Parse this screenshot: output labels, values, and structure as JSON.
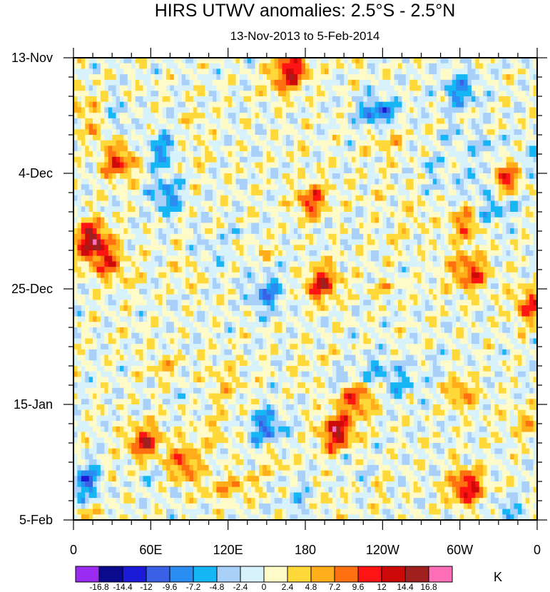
{
  "chart_data": {
    "type": "heatmap",
    "title": "HIRS UTWV anomalies: 2.5°S - 2.5°N",
    "subtitle": "13-Nov-2013 to 5-Feb-2014",
    "x_tick_labels": [
      "0",
      "60E",
      "120E",
      "180",
      "120W",
      "60W",
      "0"
    ],
    "x_range_deg_east": [
      0,
      360
    ],
    "y_tick_labels": [
      "13-Nov",
      "4-Dec",
      "25-Dec",
      "15-Jan",
      "5-Feb"
    ],
    "y_range_days": [
      0,
      84
    ],
    "colorbar_levels": [
      "-16.8",
      "-14.4",
      "-12",
      "-9.6",
      "-7.2",
      "-4.8",
      "-2.4",
      "0",
      "2.4",
      "4.8",
      "7.2",
      "9.6",
      "12",
      "14.4",
      "16.8"
    ],
    "colorbar_colors": [
      "#9a2bf0",
      "#0a0a8c",
      "#1a1ad8",
      "#3a60e6",
      "#2b8cf2",
      "#16b6f4",
      "#a8d0f8",
      "#d8f2fc",
      "#fffbc8",
      "#ffd83a",
      "#ffae1a",
      "#ff7010",
      "#ff1414",
      "#cc0a0a",
      "#a02020",
      "#ff6fb8"
    ],
    "units": "K",
    "features": [
      {
        "lon": 14,
        "day": 33,
        "value": 15
      },
      {
        "lon": 25,
        "day": 37,
        "value": 9
      },
      {
        "lon": 35,
        "day": 19,
        "value": 11
      },
      {
        "lon": 55,
        "day": 70,
        "value": 12
      },
      {
        "lon": 85,
        "day": 74,
        "value": 10
      },
      {
        "lon": 70,
        "day": 17,
        "value": -9
      },
      {
        "lon": 72,
        "day": 25,
        "value": -8
      },
      {
        "lon": 150,
        "day": 43,
        "value": -8
      },
      {
        "lon": 150,
        "day": 67,
        "value": -9
      },
      {
        "lon": 170,
        "day": 2,
        "value": 12
      },
      {
        "lon": 185,
        "day": 26,
        "value": 10
      },
      {
        "lon": 192,
        "day": 41,
        "value": 13
      },
      {
        "lon": 205,
        "day": 68,
        "value": 14
      },
      {
        "lon": 220,
        "day": 62,
        "value": 10
      },
      {
        "lon": 305,
        "day": 30,
        "value": 9
      },
      {
        "lon": 308,
        "day": 39,
        "value": 11
      },
      {
        "lon": 300,
        "day": 60,
        "value": 10
      },
      {
        "lon": 305,
        "day": 78,
        "value": 13
      },
      {
        "lon": 335,
        "day": 22,
        "value": 11
      },
      {
        "lon": 355,
        "day": 45,
        "value": 10
      },
      {
        "lon": 300,
        "day": 6,
        "value": -8
      },
      {
        "lon": 235,
        "day": 10,
        "value": -7
      },
      {
        "lon": 10,
        "day": 77,
        "value": -9
      }
    ]
  }
}
